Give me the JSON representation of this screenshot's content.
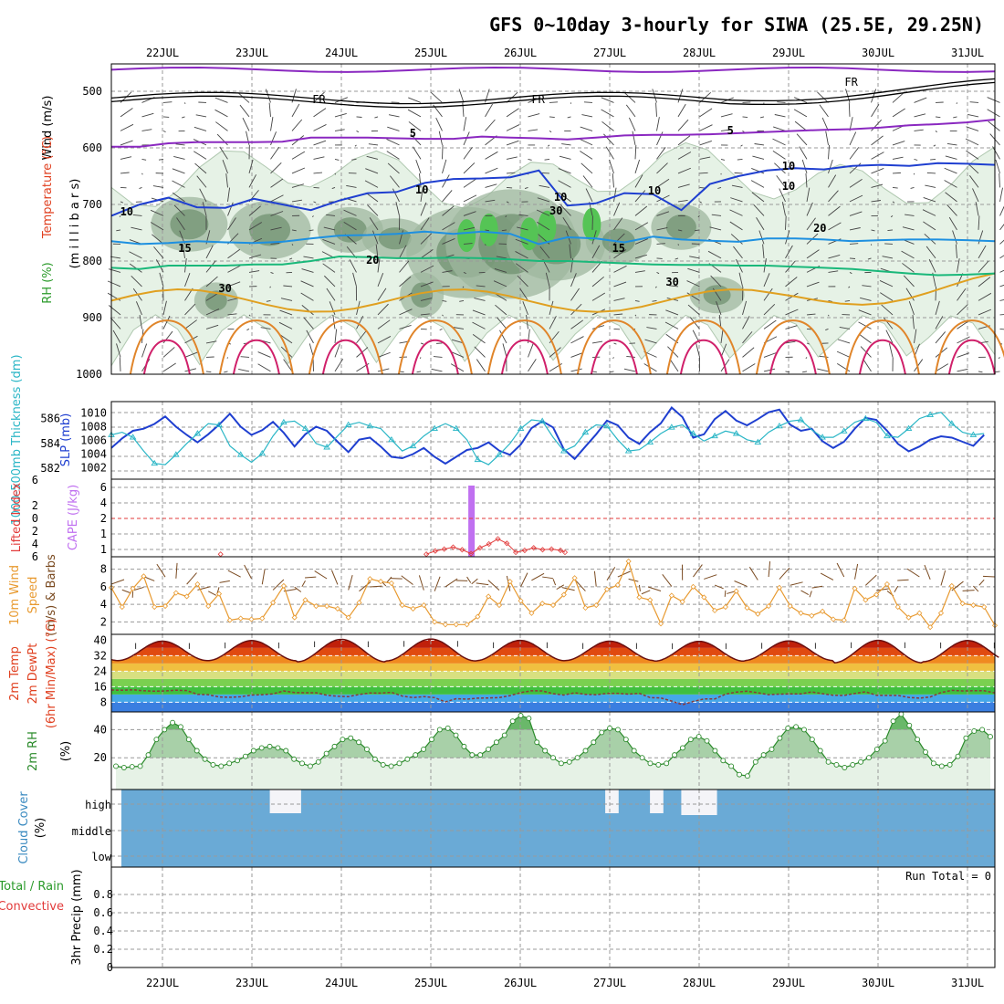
{
  "title": "GFS 0~10day 3-hourly for SIWA (25.5E, 29.25N)",
  "dates": [
    "22JUL",
    "23JUL",
    "24JUL",
    "25JUL",
    "26JUL",
    "27JUL",
    "28JUL",
    "29JUL",
    "30JUL",
    "31JUL"
  ],
  "run_total": "Run Total = 0",
  "colors": {
    "rh_fill_light": "#e6f2e6",
    "rh_fill_mid": "#9fb79f",
    "rh_fill_dark": "#6c8e6c",
    "rh_fill_green": "#55c455",
    "slp": "#1f3fd0",
    "thickness": "#2ab6c6",
    "cape": "#c070f0",
    "lifted": "#e23a3a",
    "wind10m": "#e89a30",
    "barb10m": "#7a4a20",
    "rh2m": "#2a8a2a",
    "cloud": "#6aaad6"
  },
  "labels": {
    "upper": {
      "rh": "RH (%)",
      "temp": "Temperature (°C)",
      "wind": "Wind (m/s)",
      "axis": "(m i l l i b a r s)"
    },
    "p2": {
      "thk": "1000-500mb Thickness (dm)",
      "slp": "SLP (mb)"
    },
    "p3": {
      "li": "Lifted Index",
      "cape": "CAPE (J/kg)"
    },
    "p4": {
      "a": "10m Wind",
      "b": "Speed",
      "c": "(m/s) & Barbs"
    },
    "p5": {
      "a": "2m Temp",
      "b": "2m DewPt",
      "c": "(6hr Min/Max) (°C)"
    },
    "p6": {
      "a": "2m RH",
      "b": "(%)"
    },
    "p7": {
      "a": "Cloud Cover",
      "b": "(%)",
      "high": "high",
      "middle": "middle",
      "low": "low"
    },
    "p8": {
      "a": "Total / Rain",
      "b": "Convective",
      "c": "3hr Precip (mm)"
    }
  },
  "contour_labels": {
    "fr": [
      "FR",
      "FR",
      "FR"
    ],
    "t5": [
      "5",
      "5"
    ],
    "t10": [
      "10",
      "10",
      "10"
    ],
    "t15": [
      "15",
      "15"
    ],
    "t20": [
      "20",
      "20"
    ],
    "rh30": [
      "30",
      "30",
      "30"
    ],
    "rh10": [
      "10",
      "10",
      "10"
    ]
  },
  "chart_data": [
    {
      "type": "contour",
      "name": "upper-air",
      "y_axis": {
        "label": "millibars",
        "ticks": [
          500,
          600,
          700,
          800,
          900,
          1000
        ],
        "range": [
          1000,
          450
        ]
      },
      "freezing_level_mb": 512,
      "isotherms_mb": {
        "5": [
          598,
          598,
          592,
          590,
          590,
          590,
          589,
          582,
          582,
          582,
          583,
          584,
          584,
          580,
          582,
          583,
          585,
          582,
          578,
          577,
          577,
          576,
          574,
          572,
          570,
          568,
          567,
          564,
          560,
          558,
          555,
          550
        ],
        "10": [
          720,
          700,
          688,
          705,
          706,
          690,
          700,
          710,
          693,
          680,
          678,
          662,
          655,
          654,
          652,
          640,
          702,
          698,
          680,
          682,
          710,
          664,
          650,
          640,
          636,
          638,
          632,
          630,
          632,
          627,
          628,
          630
        ],
        "15": [
          765,
          770,
          768,
          765,
          767,
          768,
          766,
          760,
          755,
          754,
          752,
          748,
          752,
          748,
          752,
          770,
          758,
          760,
          767,
          757,
          762,
          764,
          766,
          760,
          760,
          762,
          765,
          763,
          762,
          762,
          763,
          765
        ],
        "20": [
          812,
          814,
          808,
          808,
          808,
          806,
          806,
          800,
          792,
          793,
          795,
          795,
          794,
          795,
          797,
          800,
          800,
          802,
          804,
          806,
          807,
          807,
          808,
          808,
          810,
          812,
          814,
          818,
          822,
          825,
          824,
          822
        ]
      },
      "rh_contours": [
        10,
        30,
        50,
        70,
        90
      ]
    },
    {
      "type": "line",
      "name": "slp-thickness",
      "x": "3-hourly, 22JUL-31JUL",
      "series": [
        {
          "name": "SLP (mb)",
          "axis": "right-inner",
          "ylim": [
            1001,
            1011
          ],
          "values": [
            1004.9,
            1006.3,
            1007.4,
            1007.7,
            1008.4,
            1009.5,
            1008,
            1006.8,
            1005.7,
            1006.9,
            1008.3,
            1009.9,
            1008,
            1006.8,
            1007.5,
            1008.7,
            1007.1,
            1005.1,
            1006.9,
            1008,
            1007.4,
            1005.8,
            1004.3,
            1006.1,
            1006.4,
            1005.1,
            1003.6,
            1003.4,
            1004,
            1004.9,
            1003.6,
            1002.6,
            1003.6,
            1004.6,
            1004.9,
            1005.7,
            1004.5,
            1003.9,
            1005.4,
            1007.8,
            1008.8,
            1007.9,
            1004.7,
            1003.3,
            1005.1,
            1006.9,
            1008.9,
            1008.2,
            1006.4,
            1005.5,
            1007.2,
            1008.5,
            1010.8,
            1009.4,
            1006.4,
            1006.9,
            1009.1,
            1010.3,
            1008.9,
            1008.2,
            1009.1,
            1010.1,
            1010.5,
            1008.3,
            1007.4,
            1007.7,
            1005.9,
            1004.9,
            1005.8,
            1007.7,
            1009.3,
            1009,
            1007.4,
            1005.5,
            1004.4,
            1005.1,
            1006.1,
            1006.6,
            1006.4,
            1005.8,
            1005.2,
            1006.8
          ]
        },
        {
          "name": "1000-500mb Thickness (dm)",
          "axis": "left-inner",
          "ylim": [
            581.5,
            587
          ],
          "values": [
            584.7,
            584.9,
            584.5,
            583.4,
            582.4,
            582.3,
            583.1,
            584,
            584.8,
            585.6,
            585.5,
            583.8,
            583.1,
            582.5,
            583.2,
            584.6,
            585.7,
            585.8,
            585.2,
            584,
            583.7,
            584.6,
            585.5,
            585.7,
            585.4,
            585.2,
            584.3,
            583.4,
            583.8,
            584.6,
            585.2,
            585.6,
            585.2,
            584.3,
            582.7,
            582.3,
            583.1,
            584,
            585.2,
            585.9,
            585.8,
            584.5,
            583.4,
            583.8,
            584.9,
            585.5,
            585.4,
            584.3,
            583.4,
            583.5,
            584.1,
            584.8,
            585.3,
            585.5,
            584.8,
            584.2,
            584.6,
            585,
            584.8,
            584.3,
            584.1,
            584.9,
            585.4,
            585.8,
            585.9,
            585.1,
            584.5,
            584.5,
            585,
            585.7,
            586,
            585.7,
            584.6,
            584.5,
            585.2,
            586,
            586.3,
            586.5,
            585.6,
            584.9,
            584.7,
            584.8
          ]
        }
      ]
    },
    {
      "type": "bar+line",
      "name": "cape-lifted-index",
      "cape_bar": {
        "date": "25JUL 12Z",
        "value_axis": 6
      },
      "lifted_index": {
        "y_ticks": [
          6,
          2,
          0,
          -2,
          -4,
          -6
        ],
        "ref_line": 0,
        "points": [
          [
            0.65,
            5.6
          ],
          [
            2.95,
            5.6
          ],
          [
            3.05,
            5.1
          ],
          [
            3.15,
            4.8
          ],
          [
            3.25,
            4.5
          ],
          [
            3.35,
            4.9
          ],
          [
            3.45,
            5.5
          ],
          [
            3.55,
            4.6
          ],
          [
            3.65,
            4.0
          ],
          [
            3.75,
            3.2
          ],
          [
            3.85,
            3.9
          ],
          [
            3.95,
            5.3
          ],
          [
            4.05,
            5.0
          ],
          [
            4.15,
            4.6
          ],
          [
            4.25,
            4.9
          ],
          [
            4.35,
            4.8
          ],
          [
            4.45,
            5.0
          ],
          [
            4.5,
            5.3
          ]
        ]
      }
    },
    {
      "type": "line",
      "name": "10m-wind",
      "ylabel": "(m/s)",
      "ylim": [
        1,
        9
      ],
      "y_ticks": [
        2,
        4,
        6,
        8
      ],
      "values": [
        5.9,
        3.7,
        5.8,
        7.2,
        3.7,
        3.8,
        5.3,
        4.9,
        6.3,
        3.8,
        5.2,
        2.2,
        2.4,
        2.3,
        2.4,
        4.2,
        6.1,
        2.5,
        4.5,
        3.8,
        3.8,
        3.5,
        2.5,
        4.2,
        6.9,
        6.6,
        6.4,
        3.9,
        3.5,
        3.9,
        2.0,
        1.7,
        1.7,
        1.7,
        2.6,
        4.9,
        3.9,
        6.6,
        4.4,
        3.0,
        4.1,
        3.9,
        5.1,
        7.0,
        3.6,
        3.9,
        5.7,
        6.2,
        8.9,
        4.8,
        4.5,
        1.8,
        5.0,
        4.3,
        6.0,
        4.8,
        3.3,
        3.7,
        5.5,
        3.6,
        2.9,
        3.8,
        5.9,
        3.8,
        3.0,
        2.7,
        3.2,
        2.3,
        2.2,
        5.8,
        4.5,
        5.1,
        6.3,
        3.7,
        2.5,
        3.0,
        1.4,
        3.0,
        6.1,
        4.1,
        3.9,
        3.7,
        1.6
      ]
    },
    {
      "type": "area",
      "name": "2m-temp-dewpt",
      "ylabel": "(°C)",
      "y_ticks": [
        8,
        16,
        24,
        32,
        40
      ],
      "ylim": [
        3,
        43
      ],
      "temp_peaks": [
        39.5,
        39.8,
        40.4,
        40.6,
        39.9,
        39.5,
        39.4,
        39.6,
        39.9,
        39.8
      ],
      "temp_mins": [
        29.5,
        29.4,
        28.8,
        29.3,
        29.4,
        29.5,
        29.2,
        29.5,
        28.3,
        28.9
      ],
      "dewpoint": [
        14.3,
        14.2,
        14.4,
        13.9,
        13.7,
        13.8,
        14.2,
        14.0,
        12.1,
        11.9,
        10.7,
        10.6,
        10.8,
        11.7,
        11.9,
        12.3,
        13.8,
        13.0,
        12.9,
        12.9,
        11.6,
        11.1,
        10.9,
        12.0,
        12.8,
        12.7,
        13.1,
        11.2,
        10.4,
        10.9,
        10.4,
        8.2,
        9.8,
        9.6,
        10.1,
        10.2,
        10.4,
        11.4,
        13.0,
        13.9,
        13.8,
        12.4,
        11.7,
        12.9,
        12.1,
        11.9,
        12.6,
        12.6,
        12.2,
        12.6,
        10.4,
        10.2,
        8.6,
        6.7,
        8.4,
        9.7,
        9.7,
        12.2,
        13.2,
        13.7,
        12.9,
        11.9,
        12.2,
        12.3,
        12.3,
        13.3,
        12.4,
        11.6,
        11.5,
        12.5,
        13.4,
        11.6,
        11.5,
        11.5,
        10.5,
        10.1,
        10.7,
        13.0,
        14.1,
        13.8,
        13.9,
        13.9,
        12.8
      ]
    },
    {
      "type": "area",
      "name": "2m-rh",
      "ylabel": "(%)",
      "y_ticks": [
        20,
        40
      ],
      "ylim": [
        0,
        50
      ],
      "values": [
        14,
        13,
        13.6,
        14,
        22,
        33,
        40,
        45,
        42,
        33,
        25,
        19,
        15,
        14,
        16,
        18,
        21,
        25,
        27,
        28,
        27,
        25,
        19,
        16,
        14,
        17,
        23,
        28,
        33,
        34,
        31,
        26,
        19,
        15,
        14,
        16,
        19,
        22,
        26,
        33,
        40,
        41,
        36,
        28,
        22,
        22,
        26,
        31,
        36,
        46,
        50,
        48,
        31,
        25,
        20,
        16,
        17,
        20,
        25,
        31,
        38,
        41,
        40,
        33,
        25,
        20,
        16,
        15,
        16,
        22,
        27,
        33,
        35,
        32,
        25,
        18,
        14,
        8,
        7,
        17,
        22,
        26,
        34,
        41,
        42,
        40,
        33,
        25,
        17,
        15,
        13,
        15,
        17,
        20,
        26,
        32,
        46,
        51,
        43,
        33,
        24,
        16,
        14,
        15,
        21,
        34,
        39,
        40,
        35
      ]
    },
    {
      "type": "bar",
      "name": "cloud-cover",
      "levels": [
        "high",
        "middle",
        "low"
      ],
      "clear_gaps": [
        [
          1.8,
          2.15
        ],
        [
          5.55,
          5.7
        ],
        [
          6.05,
          6.2
        ],
        [
          6.4,
          6.8
        ]
      ]
    },
    {
      "type": "bar",
      "name": "3hr-precip",
      "ylabel": "3hr Precip (mm)",
      "ylim": [
        0,
        1
      ],
      "y_ticks": [
        0,
        0.2,
        0.4,
        0.6,
        0.8
      ],
      "values": []
    }
  ]
}
